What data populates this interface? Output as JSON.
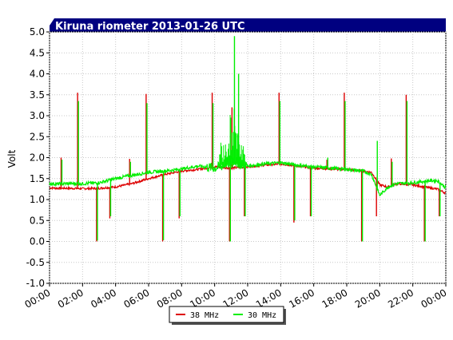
{
  "chart_data": {
    "type": "line",
    "title": "Kiruna riometer 2013-01-26 UTC",
    "ylabel": "Volt",
    "xlabel": "",
    "ylim": [
      -1.0,
      5.0
    ],
    "xlim_hours": [
      0,
      24
    ],
    "yticks": [
      "5.0",
      "4.5",
      "4.0",
      "3.5",
      "3.0",
      "2.5",
      "2.0",
      "1.5",
      "1.0",
      "0.5",
      "0.0",
      "-0.5",
      "-1.0"
    ],
    "xticks": [
      "00:00",
      "02:00",
      "04:00",
      "06:00",
      "08:00",
      "10:00",
      "12:00",
      "14:00",
      "16:00",
      "18:00",
      "20:00",
      "22:00",
      "00:00"
    ],
    "grid": "dotted",
    "legend_position": "bottom-center",
    "series": [
      {
        "name": "38 MHz",
        "color": "#dd0000",
        "points": [
          [
            0,
            1.28
          ],
          [
            0.5,
            1.27
          ],
          [
            1,
            1.27
          ],
          [
            2,
            1.26
          ],
          [
            3,
            1.27
          ],
          [
            4,
            1.3
          ],
          [
            5,
            1.38
          ],
          [
            6,
            1.5
          ],
          [
            7,
            1.6
          ],
          [
            8,
            1.68
          ],
          [
            9,
            1.72
          ],
          [
            10,
            1.78
          ],
          [
            11,
            1.75
          ],
          [
            12,
            1.78
          ],
          [
            13,
            1.82
          ],
          [
            14,
            1.85
          ],
          [
            15,
            1.8
          ],
          [
            16,
            1.75
          ],
          [
            17,
            1.73
          ],
          [
            18,
            1.72
          ],
          [
            19,
            1.68
          ],
          [
            19.5,
            1.65
          ],
          [
            20,
            1.35
          ],
          [
            20.5,
            1.3
          ],
          [
            21,
            1.38
          ],
          [
            22,
            1.35
          ],
          [
            23,
            1.28
          ],
          [
            23.5,
            1.25
          ],
          [
            24,
            1.15
          ]
        ],
        "spikes": [
          [
            0.7,
            2.0
          ],
          [
            1.7,
            3.55
          ],
          [
            2.85,
            0.0
          ],
          [
            3.65,
            0.55
          ],
          [
            4.85,
            1.97
          ],
          [
            5.85,
            3.52
          ],
          [
            6.85,
            0.0
          ],
          [
            7.85,
            0.55
          ],
          [
            9.85,
            3.55
          ],
          [
            10.9,
            0.0
          ],
          [
            11.05,
            3.2
          ],
          [
            11.8,
            0.6
          ],
          [
            13.9,
            3.55
          ],
          [
            14.8,
            0.45
          ],
          [
            15.8,
            0.6
          ],
          [
            16.8,
            1.95
          ],
          [
            17.85,
            3.55
          ],
          [
            18.9,
            0.0
          ],
          [
            19.8,
            0.6
          ],
          [
            20.7,
            1.98
          ],
          [
            21.6,
            3.5
          ],
          [
            22.7,
            0.0
          ],
          [
            23.6,
            0.6
          ]
        ]
      },
      {
        "name": "30 MHz",
        "color": "#00ee00",
        "points": [
          [
            0,
            1.38
          ],
          [
            0.5,
            1.37
          ],
          [
            1,
            1.38
          ],
          [
            2,
            1.38
          ],
          [
            3,
            1.4
          ],
          [
            4,
            1.5
          ],
          [
            5,
            1.58
          ],
          [
            6,
            1.65
          ],
          [
            7,
            1.68
          ],
          [
            8,
            1.73
          ],
          [
            9,
            1.8
          ],
          [
            10,
            1.75
          ],
          [
            10.5,
            1.8
          ],
          [
            11,
            2.0
          ],
          [
            11.5,
            1.85
          ],
          [
            12,
            1.8
          ],
          [
            13,
            1.85
          ],
          [
            14,
            1.88
          ],
          [
            15,
            1.82
          ],
          [
            16,
            1.78
          ],
          [
            17,
            1.75
          ],
          [
            18,
            1.72
          ],
          [
            19,
            1.68
          ],
          [
            19.5,
            1.6
          ],
          [
            20,
            1.1
          ],
          [
            20.5,
            1.3
          ],
          [
            21,
            1.38
          ],
          [
            22,
            1.4
          ],
          [
            23,
            1.45
          ],
          [
            23.5,
            1.45
          ],
          [
            24,
            1.28
          ]
        ],
        "spikes": [
          [
            0.75,
            1.95
          ],
          [
            1.75,
            3.35
          ],
          [
            2.9,
            0.02
          ],
          [
            3.7,
            0.6
          ],
          [
            4.9,
            1.9
          ],
          [
            5.9,
            3.3
          ],
          [
            6.9,
            0.03
          ],
          [
            7.9,
            0.6
          ],
          [
            9.9,
            3.3
          ],
          [
            10.95,
            0.0
          ],
          [
            11.2,
            4.9
          ],
          [
            11.45,
            4.0
          ],
          [
            11.85,
            0.6
          ],
          [
            13.95,
            3.35
          ],
          [
            14.85,
            0.5
          ],
          [
            15.85,
            0.6
          ],
          [
            16.85,
            2.0
          ],
          [
            17.9,
            3.35
          ],
          [
            18.95,
            0.0
          ],
          [
            19.85,
            2.4
          ],
          [
            20.75,
            1.9
          ],
          [
            21.65,
            3.35
          ],
          [
            22.75,
            0.0
          ],
          [
            23.65,
            0.6
          ]
        ]
      }
    ]
  }
}
